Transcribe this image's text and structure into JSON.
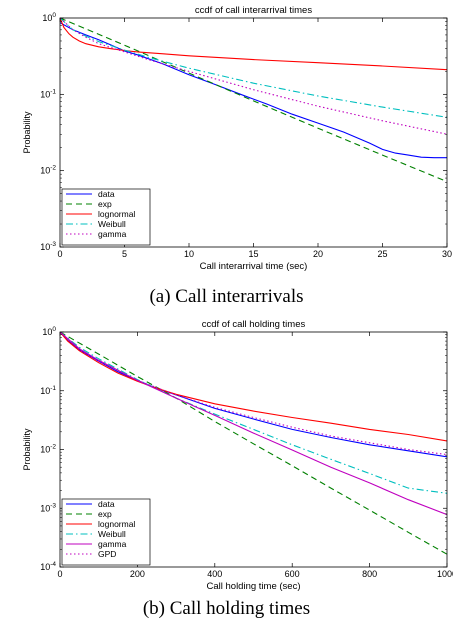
{
  "captions": {
    "a": "(a) Call interarrivals",
    "b": "(b) Call holding times"
  },
  "colors": {
    "data": "#0000ff",
    "exp": "#008000",
    "lognormal": "#ff0000",
    "Weibull": "#00bfbf",
    "gamma": "#bf00bf",
    "GPD": "#bf00bf"
  },
  "chart_data": [
    {
      "type": "line",
      "title": "ccdf of call interarrival times",
      "xlabel": "Call interarrival time (sec)",
      "ylabel": "Probability",
      "xlim": [
        0,
        30
      ],
      "ylim": [
        0.001,
        1
      ],
      "yscale": "log",
      "xticks": [
        "0",
        "5",
        "10",
        "15",
        "20",
        "25",
        "30"
      ],
      "yticks": [
        "10^-3",
        "10^-2",
        "10^-1",
        "10^0"
      ],
      "legend_position": "lower-left",
      "grid": false,
      "series": [
        {
          "name": "data",
          "style": "solid",
          "color_key": "data",
          "x": [
            0,
            1,
            2,
            3,
            4,
            5,
            6,
            8,
            10,
            12,
            14,
            16,
            18,
            20,
            22,
            24,
            25,
            26,
            27,
            28,
            29,
            30
          ],
          "y": [
            0.87,
            0.7,
            0.6,
            0.52,
            0.44,
            0.37,
            0.33,
            0.25,
            0.18,
            0.135,
            0.1,
            0.075,
            0.055,
            0.042,
            0.032,
            0.023,
            0.019,
            0.017,
            0.016,
            0.015,
            0.0148,
            0.0148
          ]
        },
        {
          "name": "exp",
          "style": "dashed",
          "color_key": "exp",
          "x": [
            0,
            5,
            10,
            15,
            20,
            25,
            30
          ],
          "y": [
            1.0,
            0.44,
            0.19,
            0.082,
            0.036,
            0.016,
            0.0072
          ]
        },
        {
          "name": "lognormal",
          "style": "solid",
          "color_key": "lognormal",
          "x": [
            0,
            0.3,
            0.7,
            1,
            1.5,
            2,
            3,
            4,
            5,
            6,
            8,
            10,
            15,
            20,
            25,
            30
          ],
          "y": [
            1.0,
            0.75,
            0.62,
            0.56,
            0.5,
            0.46,
            0.42,
            0.395,
            0.375,
            0.36,
            0.34,
            0.32,
            0.285,
            0.26,
            0.235,
            0.21
          ]
        },
        {
          "name": "Weibull",
          "style": "dashdot",
          "color_key": "Weibull",
          "x": [
            0,
            1,
            2,
            3,
            5,
            7,
            10,
            15,
            20,
            25,
            30
          ],
          "y": [
            1.0,
            0.7,
            0.58,
            0.49,
            0.38,
            0.3,
            0.22,
            0.14,
            0.095,
            0.068,
            0.05
          ]
        },
        {
          "name": "gamma",
          "style": "dotted",
          "color_key": "gamma",
          "x": [
            0,
            1,
            2,
            3,
            5,
            7,
            10,
            15,
            20,
            25,
            30
          ],
          "y": [
            1.0,
            0.7,
            0.56,
            0.46,
            0.36,
            0.28,
            0.2,
            0.115,
            0.07,
            0.045,
            0.03
          ]
        }
      ]
    },
    {
      "type": "line",
      "title": "ccdf of call holding times",
      "xlabel": "Call holding time (sec)",
      "ylabel": "Probability",
      "xlim": [
        0,
        1000
      ],
      "ylim": [
        0.0001,
        1
      ],
      "yscale": "log",
      "xticks": [
        "0",
        "200",
        "400",
        "600",
        "800",
        "1000"
      ],
      "yticks": [
        "10^-4",
        "10^-3",
        "10^-2",
        "10^-1",
        "10^0"
      ],
      "legend_position": "lower-left",
      "grid": false,
      "series": [
        {
          "name": "data",
          "style": "solid",
          "color_key": "data",
          "x": [
            0,
            20,
            50,
            100,
            150,
            200,
            250,
            300,
            400,
            500,
            600,
            700,
            800,
            900,
            1000
          ],
          "y": [
            1.0,
            0.72,
            0.5,
            0.32,
            0.21,
            0.15,
            0.11,
            0.085,
            0.05,
            0.033,
            0.022,
            0.016,
            0.012,
            0.0095,
            0.0075
          ]
        },
        {
          "name": "exp",
          "style": "dashed",
          "color_key": "exp",
          "x": [
            0,
            100,
            200,
            300,
            400,
            500,
            600,
            700,
            800,
            900,
            1000
          ],
          "y": [
            1.0,
            0.42,
            0.175,
            0.075,
            0.03,
            0.0125,
            0.0053,
            0.0022,
            0.00093,
            0.00039,
            0.000165
          ]
        },
        {
          "name": "lognormal",
          "style": "solid",
          "color_key": "lognormal",
          "x": [
            0,
            20,
            50,
            100,
            150,
            200,
            250,
            300,
            400,
            500,
            600,
            700,
            800,
            900,
            1000
          ],
          "y": [
            1.0,
            0.7,
            0.48,
            0.3,
            0.2,
            0.145,
            0.11,
            0.087,
            0.06,
            0.045,
            0.035,
            0.028,
            0.022,
            0.018,
            0.014
          ]
        },
        {
          "name": "Weibull",
          "style": "dashdot",
          "color_key": "Weibull",
          "x": [
            0,
            50,
            100,
            200,
            300,
            400,
            500,
            600,
            700,
            800,
            900,
            1000
          ],
          "y": [
            1.0,
            0.55,
            0.35,
            0.155,
            0.075,
            0.04,
            0.022,
            0.012,
            0.0068,
            0.0039,
            0.0022,
            0.0018
          ]
        },
        {
          "name": "gamma",
          "style": "solid",
          "color_key": "gamma",
          "x": [
            0,
            50,
            100,
            200,
            300,
            400,
            500,
            600,
            700,
            800,
            900,
            1000
          ],
          "y": [
            1.0,
            0.52,
            0.33,
            0.15,
            0.075,
            0.038,
            0.019,
            0.0098,
            0.005,
            0.0027,
            0.0014,
            0.00078
          ]
        },
        {
          "name": "GPD",
          "style": "dotted",
          "color_key": "GPD",
          "x": [
            0,
            50,
            100,
            200,
            300,
            400,
            500,
            600,
            700,
            800,
            900,
            1000
          ],
          "y": [
            1.0,
            0.5,
            0.32,
            0.15,
            0.085,
            0.052,
            0.035,
            0.024,
            0.017,
            0.013,
            0.01,
            0.0082
          ]
        }
      ]
    }
  ]
}
